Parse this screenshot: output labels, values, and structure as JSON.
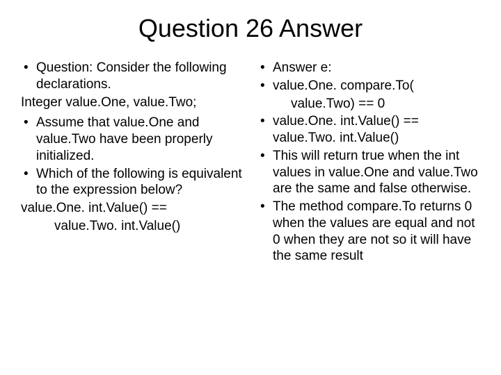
{
  "title": "Question 26 Answer",
  "left": {
    "b1": "Question: Consider the following declarations.",
    "p1": "Integer value.One, value.Two;",
    "b2": "Assume that value.One and value.Two have been properly initialized.",
    "b3": "Which of the following is equivalent to the expression below?",
    "p2a": "value.One. int.Value() ==",
    "p2b": "value.Two. int.Value()"
  },
  "right": {
    "b1": "Answer e:",
    "b2": "value.One. compare.To(",
    "b2i": "value.Two) == 0",
    "b3": "value.One. int.Value() == value.Two. int.Value()",
    "b4": "This will return true when the int values in value.One and value.Two are the same and false otherwise.",
    "b5": "The method compare.To returns 0 when the values are equal and not 0 when they are not so it will have the same result"
  },
  "colors": {
    "background": "#ffffff",
    "text": "#000000"
  },
  "fonts": {
    "title_size": 36,
    "body_size": 19
  }
}
